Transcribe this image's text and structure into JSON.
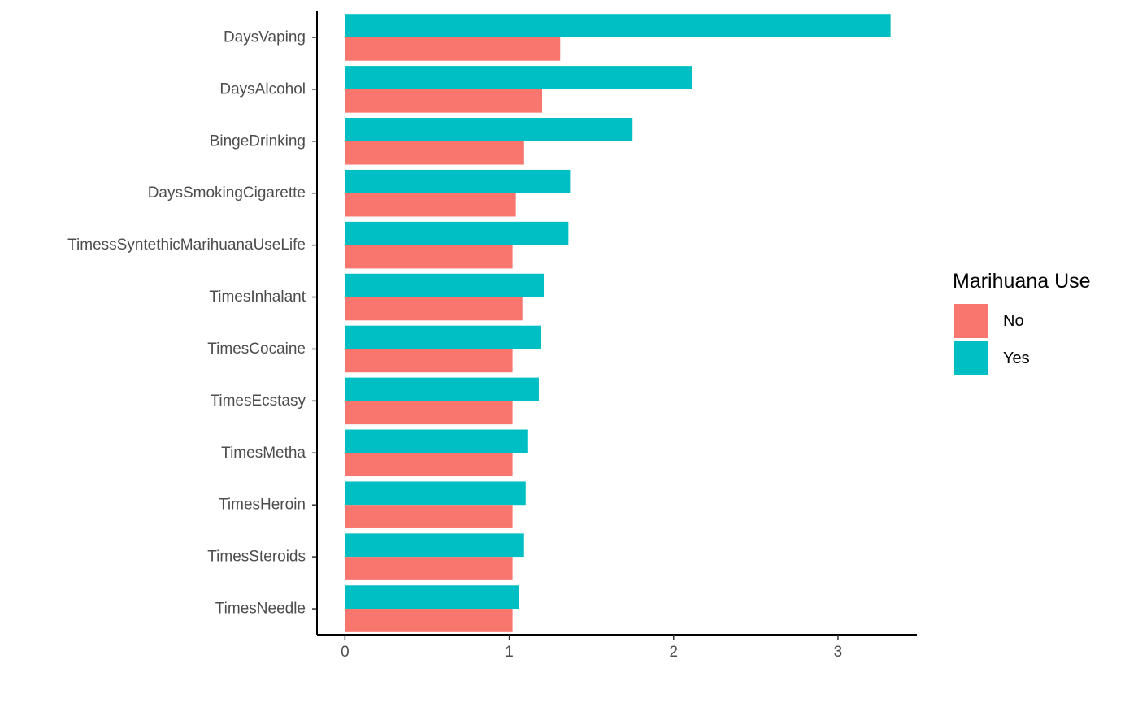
{
  "chart_data": {
    "type": "bar",
    "orientation": "horizontal",
    "categories": [
      "DaysVaping",
      "DaysAlcohol",
      "BingeDrinking",
      "DaysSmokingCigarette",
      "TimessSyntethicMarihuanaUseLife",
      "TimesInhalant",
      "TimesCocaine",
      "TimesEcstasy",
      "TimesMetha",
      "TimesHeroin",
      "TimesSteroids",
      "TimesNeedle"
    ],
    "series": [
      {
        "name": "No",
        "color": "#F8766D",
        "values": [
          1.31,
          1.2,
          1.09,
          1.04,
          1.02,
          1.08,
          1.02,
          1.02,
          1.02,
          1.02,
          1.02,
          1.02
        ]
      },
      {
        "name": "Yes",
        "color": "#00BFC4",
        "values": [
          3.32,
          2.11,
          1.75,
          1.37,
          1.36,
          1.21,
          1.19,
          1.18,
          1.11,
          1.1,
          1.09,
          1.06
        ]
      }
    ],
    "x_ticks": [
      "0",
      "1",
      "2",
      "3"
    ],
    "xlim": [
      -0.17,
      3.48
    ],
    "title": "",
    "xlabel": "",
    "ylabel": "",
    "grid": false,
    "legend": {
      "title": "Marihuana Use",
      "position": "right",
      "entries": [
        "No",
        "Yes"
      ]
    }
  }
}
